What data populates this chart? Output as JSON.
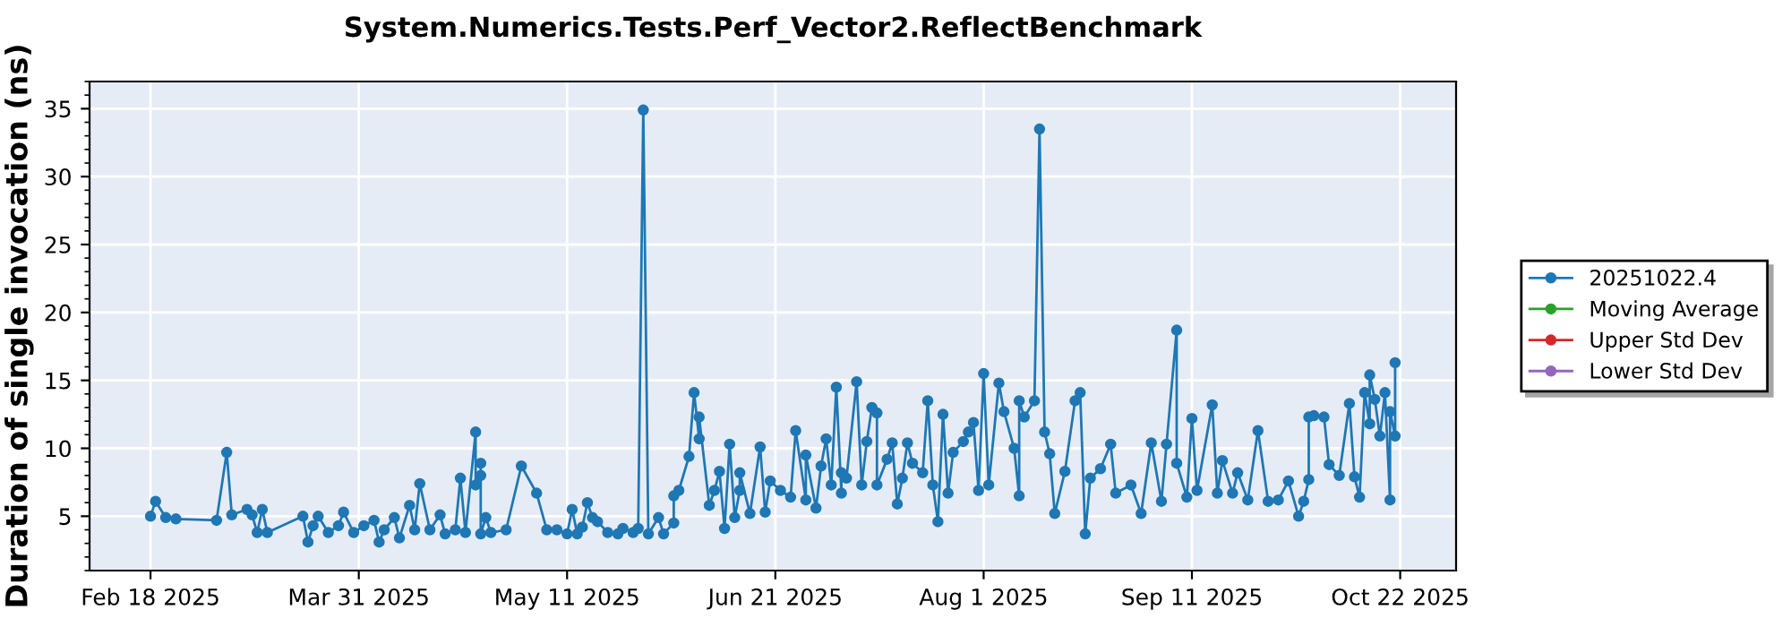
{
  "chart_data": {
    "type": "line",
    "title": "System.Numerics.Tests.Perf_Vector2.ReflectBenchmark",
    "ylabel": "Duration of single invocation (ns)",
    "x": [
      "2025-02-18",
      "2025-02-19",
      "2025-02-21",
      "2025-02-23",
      "2025-03-03",
      "2025-03-05",
      "2025-03-06",
      "2025-03-09",
      "2025-03-10",
      "2025-03-11",
      "2025-03-12",
      "2025-03-13",
      "2025-03-20",
      "2025-03-21",
      "2025-03-22",
      "2025-03-23",
      "2025-03-25",
      "2025-03-27",
      "2025-03-28",
      "2025-03-30",
      "2025-04-01",
      "2025-04-03",
      "2025-04-04",
      "2025-04-05",
      "2025-04-07",
      "2025-04-08",
      "2025-04-10",
      "2025-04-11",
      "2025-04-12",
      "2025-04-14",
      "2025-04-16",
      "2025-04-17",
      "2025-04-19",
      "2025-04-20",
      "2025-04-21",
      "2025-04-23",
      "2025-04-23",
      "2025-04-24",
      "2025-04-24",
      "2025-04-24",
      "2025-04-25",
      "2025-04-26",
      "2025-04-29",
      "2025-05-02",
      "2025-05-05",
      "2025-05-07",
      "2025-05-09",
      "2025-05-11",
      "2025-05-12",
      "2025-05-13",
      "2025-05-14",
      "2025-05-15",
      "2025-05-16",
      "2025-05-17",
      "2025-05-19",
      "2025-05-21",
      "2025-05-22",
      "2025-05-24",
      "2025-05-25",
      "2025-05-26",
      "2025-05-27",
      "2025-05-29",
      "2025-05-30",
      "2025-06-01",
      "2025-06-01",
      "2025-06-02",
      "2025-06-04",
      "2025-06-05",
      "2025-06-06",
      "2025-06-06",
      "2025-06-08",
      "2025-06-09",
      "2025-06-10",
      "2025-06-11",
      "2025-06-12",
      "2025-06-13",
      "2025-06-14",
      "2025-06-14",
      "2025-06-16",
      "2025-06-18",
      "2025-06-19",
      "2025-06-20",
      "2025-06-22",
      "2025-06-24",
      "2025-06-25",
      "2025-06-27",
      "2025-06-27",
      "2025-06-29",
      "2025-06-30",
      "2025-07-01",
      "2025-07-02",
      "2025-07-03",
      "2025-07-04",
      "2025-07-04",
      "2025-07-05",
      "2025-07-07",
      "2025-07-08",
      "2025-07-09",
      "2025-07-10",
      "2025-07-11",
      "2025-07-11",
      "2025-07-13",
      "2025-07-14",
      "2025-07-15",
      "2025-07-16",
      "2025-07-17",
      "2025-07-18",
      "2025-07-20",
      "2025-07-21",
      "2025-07-22",
      "2025-07-23",
      "2025-07-24",
      "2025-07-25",
      "2025-07-26",
      "2025-07-28",
      "2025-07-29",
      "2025-07-30",
      "2025-07-31",
      "2025-08-01",
      "2025-08-02",
      "2025-08-04",
      "2025-08-05",
      "2025-08-07",
      "2025-08-08",
      "2025-08-08",
      "2025-08-09",
      "2025-08-11",
      "2025-08-12",
      "2025-08-13",
      "2025-08-14",
      "2025-08-15",
      "2025-08-17",
      "2025-08-19",
      "2025-08-20",
      "2025-08-21",
      "2025-08-22",
      "2025-08-24",
      "2025-08-26",
      "2025-08-27",
      "2025-08-30",
      "2025-09-01",
      "2025-09-03",
      "2025-09-05",
      "2025-09-06",
      "2025-09-08",
      "2025-09-08",
      "2025-09-10",
      "2025-09-11",
      "2025-09-12",
      "2025-09-15",
      "2025-09-16",
      "2025-09-17",
      "2025-09-19",
      "2025-09-20",
      "2025-09-22",
      "2025-09-24",
      "2025-09-26",
      "2025-09-28",
      "2025-09-30",
      "2025-10-02",
      "2025-10-03",
      "2025-10-04",
      "2025-10-04",
      "2025-10-05",
      "2025-10-07",
      "2025-10-08",
      "2025-10-10",
      "2025-10-12",
      "2025-10-13",
      "2025-10-14",
      "2025-10-15",
      "2025-10-16",
      "2025-10-16",
      "2025-10-17",
      "2025-10-18",
      "2025-10-19",
      "2025-10-20",
      "2025-10-20",
      "2025-10-21",
      "2025-10-21"
    ],
    "series": [
      {
        "name": "20251022.4",
        "color": "#1f77b4",
        "values": [
          5.0,
          6.1,
          4.9,
          4.8,
          4.7,
          9.7,
          5.1,
          5.5,
          5.1,
          3.8,
          5.5,
          3.8,
          5.0,
          3.1,
          4.3,
          5.0,
          3.8,
          4.3,
          5.3,
          3.8,
          4.3,
          4.7,
          3.1,
          4.0,
          4.9,
          3.4,
          5.8,
          4.0,
          7.4,
          4.0,
          5.1,
          3.7,
          4.0,
          7.8,
          3.8,
          11.2,
          7.3,
          8.0,
          8.9,
          3.7,
          4.9,
          3.8,
          4.0,
          8.7,
          6.7,
          4.0,
          4.0,
          3.7,
          5.5,
          3.7,
          4.2,
          6.0,
          4.9,
          4.6,
          3.8,
          3.7,
          4.1,
          3.8,
          4.1,
          34.9,
          3.7,
          4.9,
          3.7,
          4.5,
          6.5,
          6.9,
          9.4,
          14.1,
          10.7,
          12.3,
          5.8,
          6.9,
          8.3,
          4.1,
          10.3,
          4.9,
          6.9,
          8.2,
          5.2,
          10.1,
          5.3,
          7.6,
          6.9,
          6.4,
          11.3,
          6.2,
          9.5,
          5.6,
          8.7,
          10.7,
          7.3,
          14.5,
          6.7,
          8.2,
          7.8,
          14.9,
          7.3,
          10.5,
          13.0,
          12.6,
          7.3,
          9.2,
          10.4,
          5.9,
          7.8,
          10.4,
          8.9,
          8.2,
          13.5,
          7.3,
          4.6,
          12.5,
          6.7,
          9.7,
          10.5,
          11.2,
          11.9,
          6.9,
          15.5,
          7.3,
          14.8,
          12.7,
          10.0,
          6.5,
          13.5,
          12.3,
          13.5,
          33.5,
          11.2,
          9.6,
          5.2,
          8.3,
          13.5,
          14.1,
          3.7,
          7.8,
          8.5,
          10.3,
          6.7,
          7.3,
          5.2,
          10.4,
          6.1,
          10.3,
          18.7,
          8.9,
          6.4,
          12.2,
          6.9,
          13.2,
          6.7,
          9.1,
          6.7,
          8.2,
          6.2,
          11.3,
          6.1,
          6.2,
          7.6,
          5.0,
          6.1,
          7.7,
          12.3,
          12.4,
          12.3,
          8.8,
          8.0,
          13.3,
          7.9,
          6.4,
          14.1,
          11.8,
          15.4,
          13.6,
          10.9,
          14.1,
          6.2,
          12.7,
          10.9,
          16.3
        ]
      },
      {
        "name": "Moving Average",
        "color": "#2ca02c",
        "values": [
          null,
          null,
          null,
          null,
          null,
          null,
          null,
          null,
          null,
          null,
          null,
          null,
          null,
          null,
          null,
          null,
          null,
          null,
          null,
          null,
          null,
          null,
          null,
          null,
          null,
          null,
          null,
          null,
          null,
          null,
          null,
          null,
          null,
          null,
          null,
          null,
          null,
          null,
          null,
          null,
          null,
          null,
          null,
          null,
          null,
          null,
          null,
          null,
          null,
          null,
          null,
          null,
          null,
          null,
          null,
          null,
          null,
          null,
          null,
          null,
          null,
          null,
          null,
          null,
          null,
          null,
          null,
          null,
          null,
          null,
          null,
          null,
          null,
          null,
          null,
          null,
          null,
          null,
          null,
          null,
          null,
          null,
          null,
          null,
          null,
          null,
          null,
          null,
          null,
          null,
          null,
          null,
          null,
          null,
          null,
          null,
          null,
          null,
          null,
          null,
          null,
          null,
          null,
          null,
          null,
          null,
          null,
          null,
          null,
          null,
          null,
          null,
          null,
          null,
          null,
          null,
          null,
          null,
          null,
          null,
          null,
          null,
          null,
          null,
          null,
          null,
          null,
          null,
          null,
          null,
          null,
          null,
          null,
          null,
          null,
          null,
          null,
          null,
          null,
          null,
          null,
          null,
          null,
          null,
          null,
          null,
          null,
          null,
          null,
          null,
          null,
          null,
          null,
          null,
          null,
          null,
          null,
          null,
          null,
          null,
          null,
          null,
          null,
          null,
          null,
          null,
          null,
          null,
          null,
          null,
          null,
          null,
          null,
          null,
          null,
          null,
          null,
          null,
          null,
          null
        ]
      },
      {
        "name": "Upper Std Dev",
        "color": "#d62728",
        "values": [
          null,
          null,
          null,
          null,
          null,
          null,
          null,
          null,
          null,
          null,
          null,
          null,
          null,
          null,
          null,
          null,
          null,
          null,
          null,
          null,
          null,
          null,
          null,
          null,
          null,
          null,
          null,
          null,
          null,
          null,
          null,
          null,
          null,
          null,
          null,
          null,
          null,
          null,
          null,
          null,
          null,
          null,
          null,
          null,
          null,
          null,
          null,
          null,
          null,
          null,
          null,
          null,
          null,
          null,
          null,
          null,
          null,
          null,
          null,
          null,
          null,
          null,
          null,
          null,
          null,
          null,
          null,
          null,
          null,
          null,
          null,
          null,
          null,
          null,
          null,
          null,
          null,
          null,
          null,
          null,
          null,
          null,
          null,
          null,
          null,
          null,
          null,
          null,
          null,
          null,
          null,
          null,
          null,
          null,
          null,
          null,
          null,
          null,
          null,
          null,
          null,
          null,
          null,
          null,
          null,
          null,
          null,
          null,
          null,
          null,
          null,
          null,
          null,
          null,
          null,
          null,
          null,
          null,
          null,
          null,
          null,
          null,
          null,
          null,
          null,
          null,
          null,
          null,
          null,
          null,
          null,
          null,
          null,
          null,
          null,
          null,
          null,
          null,
          null,
          null,
          null,
          null,
          null,
          null,
          null,
          null,
          null,
          null,
          null,
          null,
          null,
          null,
          null,
          null,
          null,
          null,
          null,
          null,
          null,
          null,
          null,
          null,
          null,
          null,
          null,
          null,
          null,
          null,
          null,
          null,
          null,
          null,
          null,
          null,
          null,
          null,
          null,
          null,
          null,
          null
        ]
      },
      {
        "name": "Lower Std Dev",
        "color": "#9467bd",
        "values": [
          null,
          null,
          null,
          null,
          null,
          null,
          null,
          null,
          null,
          null,
          null,
          null,
          null,
          null,
          null,
          null,
          null,
          null,
          null,
          null,
          null,
          null,
          null,
          null,
          null,
          null,
          null,
          null,
          null,
          null,
          null,
          null,
          null,
          null,
          null,
          null,
          null,
          null,
          null,
          null,
          null,
          null,
          null,
          null,
          null,
          null,
          null,
          null,
          null,
          null,
          null,
          null,
          null,
          null,
          null,
          null,
          null,
          null,
          null,
          null,
          null,
          null,
          null,
          null,
          null,
          null,
          null,
          null,
          null,
          null,
          null,
          null,
          null,
          null,
          null,
          null,
          null,
          null,
          null,
          null,
          null,
          null,
          null,
          null,
          null,
          null,
          null,
          null,
          null,
          null,
          null,
          null,
          null,
          null,
          null,
          null,
          null,
          null,
          null,
          null,
          null,
          null,
          null,
          null,
          null,
          null,
          null,
          null,
          null,
          null,
          null,
          null,
          null,
          null,
          null,
          null,
          null,
          null,
          null,
          null,
          null,
          null,
          null,
          null,
          null,
          null,
          null,
          null,
          null,
          null,
          null,
          null,
          null,
          null,
          null,
          null,
          null,
          null,
          null,
          null,
          null,
          null,
          null,
          null,
          null,
          null,
          null,
          null,
          null,
          null,
          null,
          null,
          null,
          null,
          null,
          null,
          null,
          null,
          null,
          null,
          null,
          null,
          null,
          null,
          null,
          null,
          null,
          null,
          null,
          null,
          null,
          null,
          null,
          null,
          null,
          null,
          null,
          null,
          null,
          null
        ]
      }
    ],
    "xlim": [
      "2025-02-06",
      "2025-11-02"
    ],
    "xticks": [
      {
        "value": "2025-02-18",
        "label": "Feb 18 2025"
      },
      {
        "value": "2025-03-31",
        "label": "Mar 31 2025"
      },
      {
        "value": "2025-05-11",
        "label": "May 11 2025"
      },
      {
        "value": "2025-06-21",
        "label": "Jun 21 2025"
      },
      {
        "value": "2025-08-01",
        "label": "Aug 1 2025"
      },
      {
        "value": "2025-09-11",
        "label": "Sep 11 2025"
      },
      {
        "value": "2025-10-22",
        "label": "Oct 22 2025"
      }
    ],
    "ylim": [
      1,
      37
    ],
    "yticks": [
      5,
      10,
      15,
      20,
      25,
      30,
      35
    ],
    "grid": true,
    "legend": "right",
    "marker": "circle",
    "line_style": "solid"
  }
}
